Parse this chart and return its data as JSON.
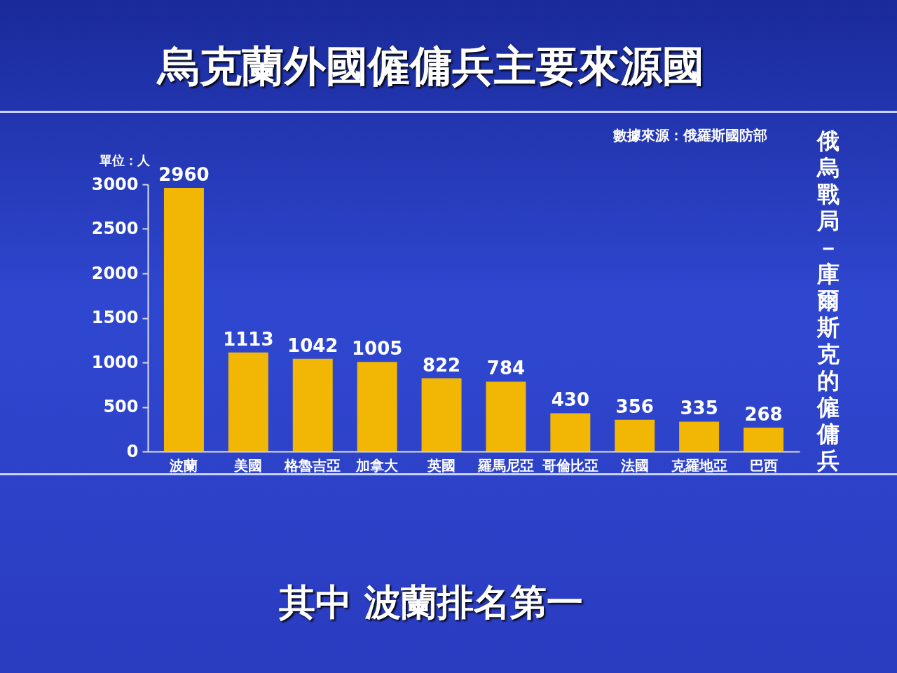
{
  "chart_data": {
    "type": "bar",
    "title": "烏克蘭外國僱傭兵主要來源國",
    "ylabel": "單位：人",
    "categories": [
      "波蘭",
      "美國",
      "格魯吉亞",
      "加拿大",
      "英國",
      "羅馬尼亞",
      "哥倫比亞",
      "法國",
      "克羅地亞",
      "巴西"
    ],
    "values": [
      2960,
      1113,
      1042,
      1005,
      822,
      784,
      430,
      356,
      335,
      268
    ],
    "color": "#f2b705",
    "ylim": [
      0,
      3000
    ],
    "yticks": [
      0,
      500,
      1000,
      1500,
      2000,
      2500,
      3000
    ],
    "data_labels": true,
    "grid": false,
    "annotations": [
      "數據來源：俄羅斯國防部",
      "俄烏戰局－庫爾斯克的僱傭兵",
      "其中 波蘭排名第一"
    ]
  }
}
